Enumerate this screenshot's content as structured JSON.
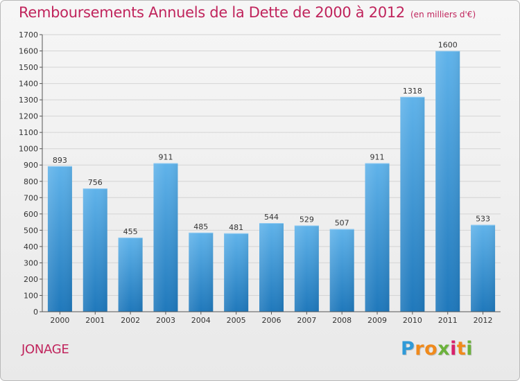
{
  "title": "Remboursements Annuels de la Dette de 2000 à 2012",
  "subtitle": "(en milliers d'€)",
  "city": "JONAGE",
  "logo": {
    "letters": [
      "P",
      "r",
      "o",
      "x",
      "i",
      "t",
      "i"
    ],
    "colors": [
      "#2f9ad8",
      "#f08a1c",
      "#f08a1c",
      "#6bb23b",
      "#d9206b",
      "#f08a1c",
      "#6bb23b"
    ]
  },
  "colors": {
    "title": "#c0245c",
    "bar_top": "#60b3ea",
    "bar_bottom": "#1f78bb"
  },
  "chart_data": {
    "type": "bar",
    "categories": [
      "2000",
      "2001",
      "2002",
      "2003",
      "2004",
      "2005",
      "2006",
      "2007",
      "2008",
      "2009",
      "2010",
      "2011",
      "2012"
    ],
    "values": [
      893,
      756,
      455,
      911,
      485,
      481,
      544,
      529,
      507,
      911,
      1318,
      1600,
      533
    ],
    "ylim": [
      0,
      1700
    ],
    "yticks": [
      0,
      100,
      200,
      300,
      400,
      500,
      600,
      700,
      800,
      900,
      1000,
      1100,
      1200,
      1300,
      1400,
      1500,
      1600,
      1700
    ],
    "grid": true,
    "legend": "none"
  }
}
